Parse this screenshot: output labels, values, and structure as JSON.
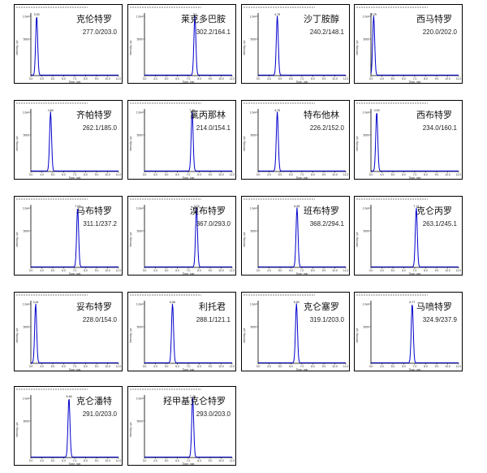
{
  "page": {
    "background": "#ffffff",
    "trace_color": "#0000cc",
    "axis_color": "#000000"
  },
  "chart_data": [
    {
      "type": "line",
      "compound": "克伦特罗",
      "transition": "277.0/203.0",
      "peak_rt": "3.53",
      "x_range": [
        3.0,
        11.0
      ],
      "xlabel": "Time, min",
      "ylabel": "Intensity, cps",
      "y_ticks": [
        "1.0e4",
        "5000"
      ]
    },
    {
      "type": "line",
      "compound": "莱克多巴胺",
      "transition": "302.2/164.1",
      "peak_rt": "7.6",
      "x_range": [
        3.0,
        11.0
      ],
      "xlabel": "Time, min",
      "ylabel": "Intensity, cps",
      "y_ticks": [
        "1.0e4",
        "5000"
      ]
    },
    {
      "type": "line",
      "compound": "沙丁胺醇",
      "transition": "240.2/148.1",
      "peak_rt": "4.75",
      "x_range": [
        3.0,
        11.0
      ],
      "xlabel": "Time, min",
      "ylabel": "Intensity, cps",
      "y_ticks": [
        "1.0e4",
        "5000"
      ]
    },
    {
      "type": "line",
      "compound": "西马特罗",
      "transition": "220.0/202.0",
      "peak_rt": "3.25",
      "x_range": [
        3.0,
        11.0
      ],
      "xlabel": "Time, min",
      "ylabel": "Intensity, cps",
      "y_ticks": [
        "1.0e4",
        "5000"
      ]
    },
    {
      "type": "line",
      "compound": "齐帕特罗",
      "transition": "262.1/185.0",
      "peak_rt": "4.80",
      "x_range": [
        3.0,
        11.0
      ],
      "xlabel": "Time, min",
      "ylabel": "Intensity, cps",
      "y_ticks": [
        "1.0e4",
        "5000"
      ]
    },
    {
      "type": "line",
      "compound": "氯丙那林",
      "transition": "214.0/154.1",
      "peak_rt": "7.35",
      "x_range": [
        3.0,
        11.0
      ],
      "xlabel": "Time, min",
      "ylabel": "Intensity, cps",
      "y_ticks": [
        "1.0e4",
        "5000"
      ]
    },
    {
      "type": "line",
      "compound": "特布他林",
      "transition": "226.2/152.0",
      "peak_rt": "4.75",
      "x_range": [
        3.0,
        11.0
      ],
      "xlabel": "Time, min",
      "ylabel": "Intensity, cps",
      "y_ticks": [
        "1.0e4",
        "5000"
      ]
    },
    {
      "type": "line",
      "compound": "西布特罗",
      "transition": "234.0/160.1",
      "peak_rt": "3.53",
      "x_range": [
        3.0,
        11.0
      ],
      "xlabel": "Time, min",
      "ylabel": "Intensity, cps",
      "y_ticks": [
        "1.0e4",
        "5000"
      ]
    },
    {
      "type": "line",
      "compound": "马布特罗",
      "transition": "311.1/237.2",
      "peak_rt": "7.27",
      "x_range": [
        3.0,
        11.0
      ],
      "xlabel": "Time, min",
      "ylabel": "Intensity, cps",
      "y_ticks": [
        "1.0e4",
        "5000"
      ]
    },
    {
      "type": "line",
      "compound": "溴布特罗",
      "transition": "367.0/293.0",
      "peak_rt": "7.75",
      "x_range": [
        3.0,
        11.0
      ],
      "xlabel": "Time, min",
      "ylabel": "Intensity, cps",
      "y_ticks": [
        "1.0e4",
        "5000"
      ]
    },
    {
      "type": "line",
      "compound": "班布特罗",
      "transition": "368.2/294.1",
      "peak_rt": "6.55",
      "x_range": [
        3.0,
        11.0
      ],
      "xlabel": "Time, min",
      "ylabel": "Intensity, cps",
      "y_ticks": [
        "1.0e4",
        "5000"
      ]
    },
    {
      "type": "line",
      "compound": "克仑丙罗",
      "transition": "263.1/245.1",
      "peak_rt": "7.14",
      "x_range": [
        3.0,
        11.0
      ],
      "xlabel": "Time, min",
      "ylabel": "Intensity, cps",
      "y_ticks": [
        "1.0e4",
        "5000"
      ]
    },
    {
      "type": "line",
      "compound": "妥布特罗",
      "transition": "228.0/154.0",
      "peak_rt": "3.44",
      "x_range": [
        3.0,
        11.0
      ],
      "xlabel": "Time, min",
      "ylabel": "Intensity, cps",
      "y_ticks": [
        "1.0e4",
        "5000"
      ]
    },
    {
      "type": "line",
      "compound": "利托君",
      "transition": "288.1/121.1",
      "peak_rt": "5.56",
      "x_range": [
        3.0,
        11.0
      ],
      "xlabel": "Time, min",
      "ylabel": "Intensity, cps",
      "y_ticks": [
        "1.0e4",
        "5000"
      ]
    },
    {
      "type": "line",
      "compound": "克仑塞罗",
      "transition": "319.1/203.0",
      "peak_rt": "6.50",
      "x_range": [
        3.0,
        11.0
      ],
      "xlabel": "Time, min",
      "ylabel": "Intensity, cps",
      "y_ticks": [
        "1.0e4",
        "5000"
      ]
    },
    {
      "type": "line",
      "compound": "马喷特罗",
      "transition": "324.9/237.9",
      "peak_rt": "6.77",
      "x_range": [
        3.0,
        11.0
      ],
      "xlabel": "Time, min",
      "ylabel": "Intensity, cps",
      "y_ticks": [
        "1.0e4",
        "5000"
      ]
    },
    {
      "type": "line",
      "compound": "克仑潘特",
      "transition": "291.0/203.0",
      "peak_rt": "6.48",
      "x_range": [
        3.0,
        11.0
      ],
      "xlabel": "Time, min",
      "ylabel": "Intensity, cps",
      "y_ticks": [
        "1.0e4",
        "5000"
      ]
    },
    {
      "type": "line",
      "compound": "羟甲基克仑特罗",
      "transition": "293.0/203.0",
      "peak_rt": "7.40",
      "x_range": [
        3.0,
        11.0
      ],
      "xlabel": "Time, min",
      "ylabel": "Intensity, cps",
      "y_ticks": [
        "1.0e4",
        "5000"
      ]
    }
  ]
}
